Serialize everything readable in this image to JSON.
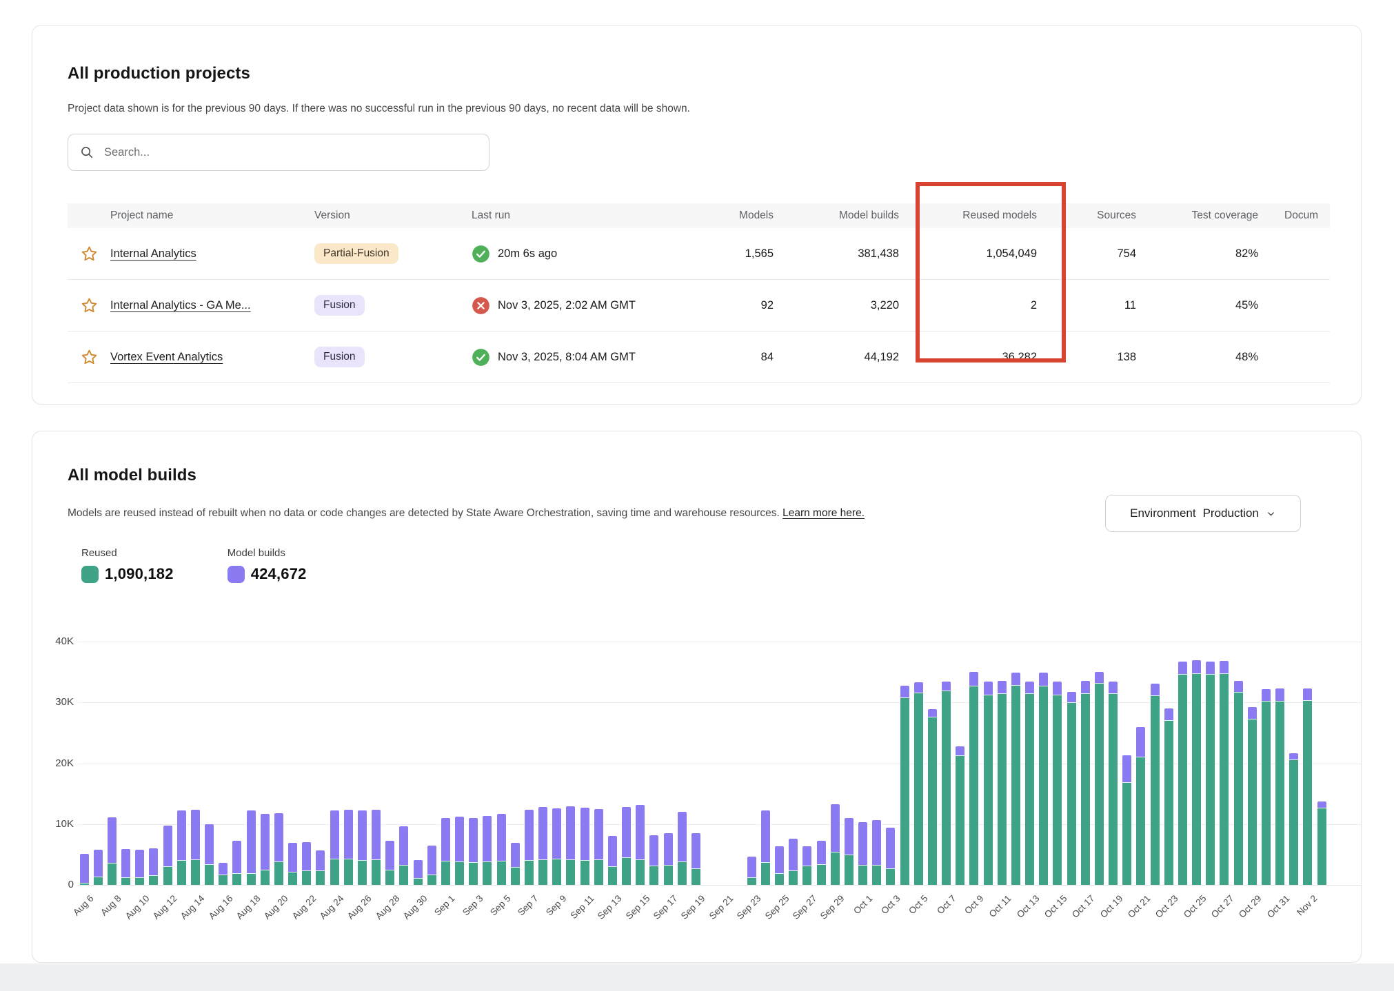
{
  "projects_card": {
    "title": "All production projects",
    "subtitle": "Project data shown is for the previous 90 days. If there was no successful run in the previous 90 days, no recent data will be shown.",
    "search_placeholder": "Search...",
    "columns": [
      "",
      "Project name",
      "Version",
      "Last run",
      "Models",
      "Model builds",
      "Reused models",
      "Sources",
      "Test coverage",
      "Docum"
    ],
    "highlight": {
      "column": "Reused models",
      "color": "#d94432"
    },
    "rows": [
      {
        "name": "Internal Analytics",
        "version": "Partial-Fusion",
        "version_style": "partial",
        "last_run_status": "success",
        "last_run": "20m 6s ago",
        "models": "1,565",
        "model_builds": "381,438",
        "reused_models": "1,054,049",
        "sources": "754",
        "test_coverage": "82%"
      },
      {
        "name": "Internal Analytics - GA Me...",
        "version": "Fusion",
        "version_style": "fusion",
        "last_run_status": "error",
        "last_run": "Nov 3, 2025, 2:02 AM GMT",
        "models": "92",
        "model_builds": "3,220",
        "reused_models": "2",
        "sources": "11",
        "test_coverage": "45%"
      },
      {
        "name": "Vortex Event Analytics",
        "version": "Fusion",
        "version_style": "fusion",
        "last_run_status": "success",
        "last_run": "Nov 3, 2025, 8:04 AM GMT",
        "models": "84",
        "model_builds": "44,192",
        "reused_models": "36,282",
        "sources": "138",
        "test_coverage": "48%"
      }
    ]
  },
  "builds_card": {
    "title": "All model builds",
    "subtitle": "Models are reused instead of rebuilt when no data or code changes are detected by State Aware Orchestration, saving time and warehouse resources. ",
    "learn_more": "Learn more here.",
    "environment_label": "Environment",
    "environment_value": "Production",
    "legend": [
      {
        "label": "Reused",
        "value": "1,090,182",
        "color": "#3fa388"
      },
      {
        "label": "Model builds",
        "value": "424,672",
        "color": "#8b7bf2"
      }
    ]
  },
  "chart_data": {
    "type": "bar",
    "stacked": true,
    "title": "All model builds",
    "xlabel": "",
    "ylabel": "",
    "ylim": [
      0,
      40000
    ],
    "y_ticks": [
      0,
      10000,
      20000,
      30000,
      40000
    ],
    "y_tick_labels": [
      "0",
      "10K",
      "20K",
      "30K",
      "40K"
    ],
    "grid": true,
    "legend_position": "top-left",
    "x_label_every": 2,
    "x": [
      "Aug 6",
      "Aug 7",
      "Aug 8",
      "Aug 9",
      "Aug 10",
      "Aug 11",
      "Aug 12",
      "Aug 13",
      "Aug 14",
      "Aug 15",
      "Aug 16",
      "Aug 17",
      "Aug 18",
      "Aug 19",
      "Aug 20",
      "Aug 21",
      "Aug 22",
      "Aug 23",
      "Aug 24",
      "Aug 25",
      "Aug 26",
      "Aug 27",
      "Aug 28",
      "Aug 29",
      "Aug 30",
      "Aug 31",
      "Sep 1",
      "Sep 2",
      "Sep 3",
      "Sep 4",
      "Sep 5",
      "Sep 6",
      "Sep 7",
      "Sep 8",
      "Sep 9",
      "Sep 10",
      "Sep 11",
      "Sep 12",
      "Sep 13",
      "Sep 14",
      "Sep 15",
      "Sep 16",
      "Sep 17",
      "Sep 18",
      "Sep 19",
      "Sep 20",
      "Sep 21",
      "Sep 22",
      "Sep 23",
      "Sep 24",
      "Sep 25",
      "Sep 26",
      "Sep 27",
      "Sep 28",
      "Sep 29",
      "Sep 30",
      "Oct 1",
      "Oct 2",
      "Oct 3",
      "Oct 4",
      "Oct 5",
      "Oct 6",
      "Oct 7",
      "Oct 8",
      "Oct 9",
      "Oct 10",
      "Oct 11",
      "Oct 12",
      "Oct 13",
      "Oct 14",
      "Oct 15",
      "Oct 16",
      "Oct 17",
      "Oct 18",
      "Oct 19",
      "Oct 20",
      "Oct 21",
      "Oct 22",
      "Oct 23",
      "Oct 24",
      "Oct 25",
      "Oct 26",
      "Oct 27",
      "Oct 28",
      "Oct 29",
      "Oct 30",
      "Oct 31",
      "Nov 1",
      "Nov 2",
      "Nov 3"
    ],
    "series": [
      {
        "name": "Reused",
        "color": "#3fa388",
        "values": [
          300,
          1400,
          3600,
          1300,
          1250,
          1600,
          3100,
          4100,
          4200,
          3400,
          1700,
          1900,
          1900,
          2500,
          3900,
          2200,
          2400,
          2400,
          4300,
          4300,
          4100,
          4200,
          2500,
          3300,
          1100,
          1700,
          4000,
          3900,
          3700,
          3800,
          4000,
          2900,
          4100,
          4200,
          4300,
          4200,
          4100,
          4200,
          3100,
          4500,
          4200,
          3200,
          3300,
          3800,
          2700,
          0,
          0,
          0,
          1200,
          3700,
          1900,
          2400,
          3200,
          3400,
          5400,
          5000,
          3300,
          3300,
          2700,
          30800,
          31600,
          27600,
          32000,
          21300,
          32800,
          31300,
          31500,
          32900,
          31500,
          32800,
          31300,
          30000,
          31500,
          33200,
          31500,
          16900,
          21100,
          31200,
          27100,
          34700,
          34800,
          34700,
          34800,
          31700,
          27300,
          30300,
          30300,
          20600,
          30400,
          12700
        ]
      },
      {
        "name": "Model builds",
        "color": "#8b7bf2",
        "values": [
          4800,
          4400,
          7500,
          4600,
          4550,
          4400,
          6700,
          8100,
          8100,
          6600,
          1900,
          5400,
          10300,
          9200,
          7900,
          4700,
          4600,
          3300,
          7900,
          8100,
          8100,
          8200,
          4800,
          6300,
          3000,
          4800,
          7000,
          7300,
          7300,
          7500,
          7700,
          4000,
          8300,
          8600,
          8300,
          8700,
          8600,
          8300,
          4900,
          8300,
          8900,
          5000,
          5200,
          8200,
          5800,
          0,
          0,
          0,
          3400,
          8500,
          4400,
          5200,
          3100,
          3900,
          7900,
          6000,
          7000,
          7300,
          6700,
          2000,
          1700,
          1300,
          1400,
          1500,
          2200,
          2100,
          2000,
          2000,
          1900,
          2100,
          2100,
          1700,
          2000,
          1800,
          1900,
          4400,
          4900,
          1900,
          1900,
          2000,
          2100,
          2000,
          2000,
          1800,
          1900,
          1900,
          2000,
          1000,
          1900,
          1000
        ]
      }
    ]
  }
}
